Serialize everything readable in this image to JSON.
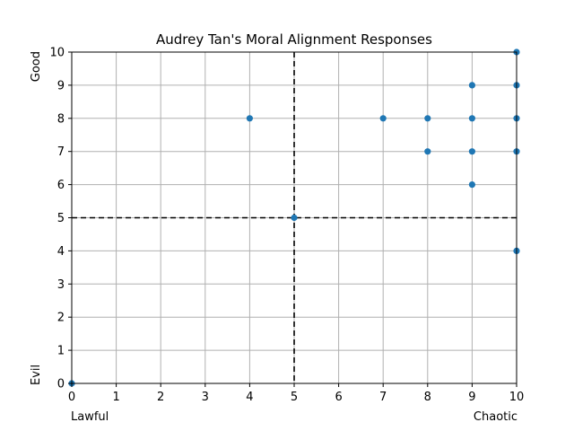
{
  "chart_data": {
    "type": "scatter",
    "title": "Audrey Tan's Moral Alignment Responses",
    "xlabel": "",
    "ylabel": "",
    "xlim": [
      0,
      10
    ],
    "ylim": [
      0,
      10
    ],
    "xticks": [
      0,
      1,
      2,
      3,
      4,
      5,
      6,
      7,
      8,
      9,
      10
    ],
    "yticks": [
      0,
      1,
      2,
      3,
      4,
      5,
      6,
      7,
      8,
      9,
      10
    ],
    "x_end_labels": {
      "low": "Lawful",
      "high": "Chaotic"
    },
    "y_end_labels": {
      "low": "Evil",
      "high": "Good"
    },
    "grid": true,
    "reference_lines": {
      "x": 5,
      "y": 5,
      "style": "dashed",
      "color": "#000000"
    },
    "marker_color": "#1f77b4",
    "grid_color": "#b0b0b0",
    "points": [
      {
        "x": 0,
        "y": 0
      },
      {
        "x": 4,
        "y": 8
      },
      {
        "x": 5,
        "y": 5
      },
      {
        "x": 7,
        "y": 8
      },
      {
        "x": 8,
        "y": 8
      },
      {
        "x": 8,
        "y": 7
      },
      {
        "x": 9,
        "y": 9
      },
      {
        "x": 9,
        "y": 8
      },
      {
        "x": 9,
        "y": 7
      },
      {
        "x": 9,
        "y": 6
      },
      {
        "x": 10,
        "y": 10
      },
      {
        "x": 10,
        "y": 9
      },
      {
        "x": 10,
        "y": 8
      },
      {
        "x": 10,
        "y": 7
      },
      {
        "x": 10,
        "y": 4
      }
    ]
  }
}
